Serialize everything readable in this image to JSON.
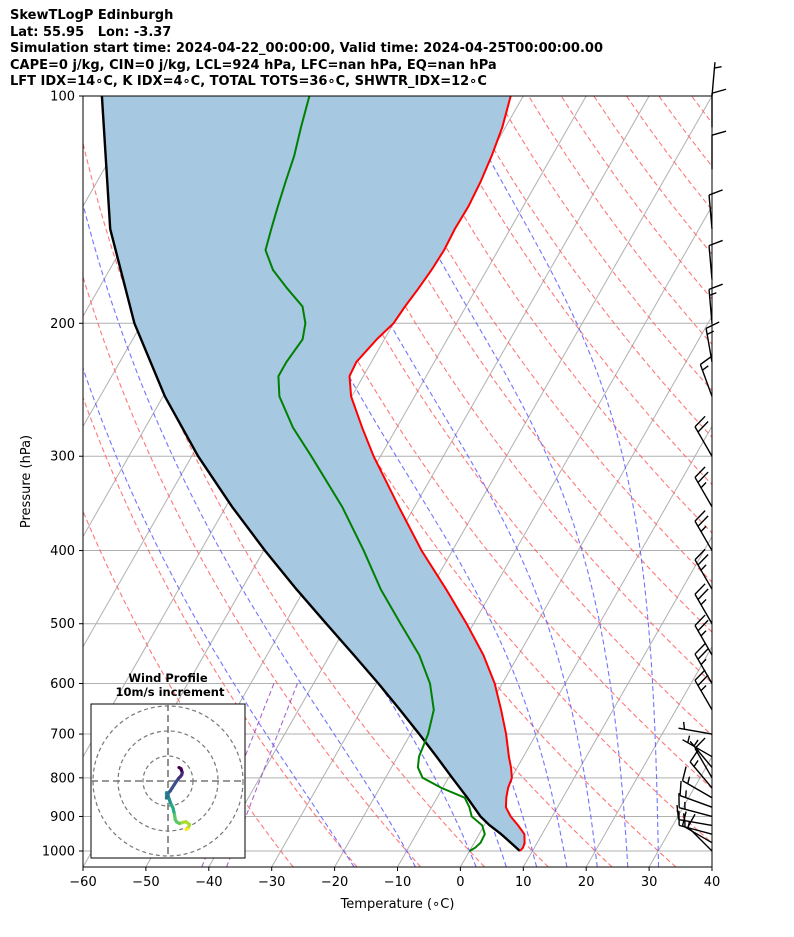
{
  "title_lines": [
    "SkewTLogP Edinburgh",
    "Lat: 55.95   Lon: -3.37",
    "Simulation start time: 2024-04-22_00:00:00, Valid time: 2024-04-25T00:00:00.00",
    "CAPE=0 j/kg, CIN=0 j/kg, LCL=924 hPa, LFC=nan hPa, EQ=nan hPa",
    "LFT IDX=14∘C, K IDX=4∘C, TOTAL TOTS=36∘C, SHWTR_IDX=12∘C"
  ],
  "colors": {
    "temperature": "#ff0000",
    "dewpoint": "#008000",
    "parcel": "#000000",
    "cape_fill": "#a6c8e0",
    "dry_adiabat": "#ff6060",
    "moist_adiabat": "#5a5aff",
    "mixing_ratio": "#9040c0",
    "isotherm": "#b0b0b0"
  },
  "chart_data": {
    "type": "line",
    "title": "SkewTLogP Edinburgh",
    "xlabel": "Temperature (∘C)",
    "ylabel": "Pressure (hPa)",
    "xlim": [
      -60,
      40
    ],
    "ylim": [
      1050,
      100
    ],
    "x_ticks": [
      "−60",
      "−50",
      "−40",
      "−30",
      "−20",
      "−10",
      "0",
      "10",
      "20",
      "30",
      "40"
    ],
    "y_ticks": [
      "100",
      "200",
      "300",
      "400",
      "500",
      "600",
      "700",
      "800",
      "900",
      "1000"
    ],
    "y_scale": "log",
    "grid": true,
    "series": [
      {
        "kind": "temperature",
        "pressure": [
          1000,
          990,
          975,
          950,
          925,
          900,
          875,
          850,
          825,
          800,
          775,
          750,
          700,
          650,
          600,
          550,
          500,
          450,
          400,
          350,
          300,
          275,
          250,
          235,
          225,
          210,
          200,
          190,
          180,
          170,
          160,
          150,
          140,
          130,
          120,
          110,
          100
        ],
        "values": [
          8.0,
          8.2,
          8.0,
          7.2,
          5.4,
          3.4,
          1.8,
          1.0,
          0.4,
          0.1,
          -1.0,
          -2.3,
          -4.8,
          -7.8,
          -11.2,
          -15.6,
          -21.1,
          -27.5,
          -34.9,
          -42.5,
          -51.1,
          -55.5,
          -60.1,
          -62.2,
          -62.4,
          -61.2,
          -60.0,
          -59.7,
          -59.2,
          -58.8,
          -58.6,
          -58.8,
          -58.7,
          -59.0,
          -59.6,
          -60.5,
          -62.0
        ]
      },
      {
        "kind": "dewpoint",
        "pressure": [
          1000,
          990,
          975,
          950,
          925,
          900,
          875,
          850,
          825,
          800,
          775,
          750,
          700,
          650,
          600,
          550,
          500,
          450,
          400,
          350,
          300,
          275,
          250,
          235,
          225,
          210,
          200,
          190,
          180,
          170,
          160,
          150,
          140,
          130,
          120,
          110,
          100
        ],
        "values": [
          0.0,
          0.6,
          1.0,
          0.9,
          -0.3,
          -2.8,
          -4.0,
          -5.6,
          -10.2,
          -14.1,
          -15.8,
          -16.6,
          -17.2,
          -18.5,
          -21.5,
          -25.8,
          -31.6,
          -37.9,
          -44.1,
          -51.5,
          -61.0,
          -66.5,
          -71.5,
          -73.5,
          -73.5,
          -73.0,
          -74.0,
          -76.0,
          -80.0,
          -84.0,
          -87.0,
          -88.0,
          -89.0,
          -90.0,
          -91.0,
          -92.5,
          -94.0
        ]
      },
      {
        "kind": "parcel",
        "pressure": [
          1000,
          975,
          950,
          924,
          900,
          850,
          800,
          750,
          700,
          650,
          600,
          550,
          500,
          450,
          400,
          350,
          300,
          250,
          200,
          150,
          100
        ],
        "values": [
          8.0,
          5.8,
          3.5,
          0.8,
          -1.4,
          -5.2,
          -9.4,
          -13.8,
          -18.6,
          -23.9,
          -29.7,
          -36.2,
          -43.4,
          -51.3,
          -59.8,
          -69.0,
          -79.0,
          -89.7,
          -101.2,
          -113.6,
          -127.0
        ]
      }
    ],
    "wind_barbs": {
      "pressure": [
        1000,
        975,
        950,
        925,
        900,
        875,
        850,
        825,
        800,
        775,
        750,
        700,
        650,
        600,
        550,
        500,
        450,
        400,
        350,
        300,
        250,
        225,
        200,
        175,
        150,
        125,
        110,
        100
      ],
      "speed_kt": [
        10,
        15,
        15,
        15,
        15,
        15,
        15,
        15,
        10,
        5,
        5,
        5,
        25,
        25,
        25,
        25,
        25,
        25,
        25,
        20,
        15,
        15,
        15,
        10,
        10,
        10,
        10,
        5
      ],
      "direction_deg": [
        315,
        300,
        285,
        280,
        285,
        290,
        300,
        320,
        330,
        320,
        300,
        280,
        330,
        330,
        330,
        330,
        330,
        330,
        330,
        330,
        340,
        350,
        355,
        355,
        355,
        0,
        0,
        5
      ]
    },
    "hodograph": {
      "title": "Wind Profile",
      "subtitle": "10m/s increment",
      "u": [
        7.2,
        8.0,
        8.4,
        8.6,
        7.2,
        5.8,
        4.6,
        3.5,
        2.9,
        2.7,
        2.4,
        2.0,
        1.5,
        0.9,
        0.5,
        0.0,
        -0.6,
        -0.6,
        -0.2,
        0.2,
        0.9,
        1.7,
        2.5,
        3.4,
        4.3,
        5.0,
        5.5,
        5.7,
        5.4,
        5.2,
        4.4
      ],
      "v": [
        -19.4,
        -19.0,
        -18.1,
        -17.4,
        -16.3,
        -16.6,
        -17.0,
        -16.4,
        -15.5,
        -14.1,
        -12.5,
        -10.8,
        -9.8,
        -8.6,
        -7.3,
        -5.8,
        -4.7,
        -6.8,
        -6.1,
        -4.7,
        -4.0,
        -2.7,
        -1.5,
        -0.1,
        1.1,
        1.8,
        2.5,
        3.4,
        4.3,
        4.9,
        5.4
      ]
    }
  }
}
